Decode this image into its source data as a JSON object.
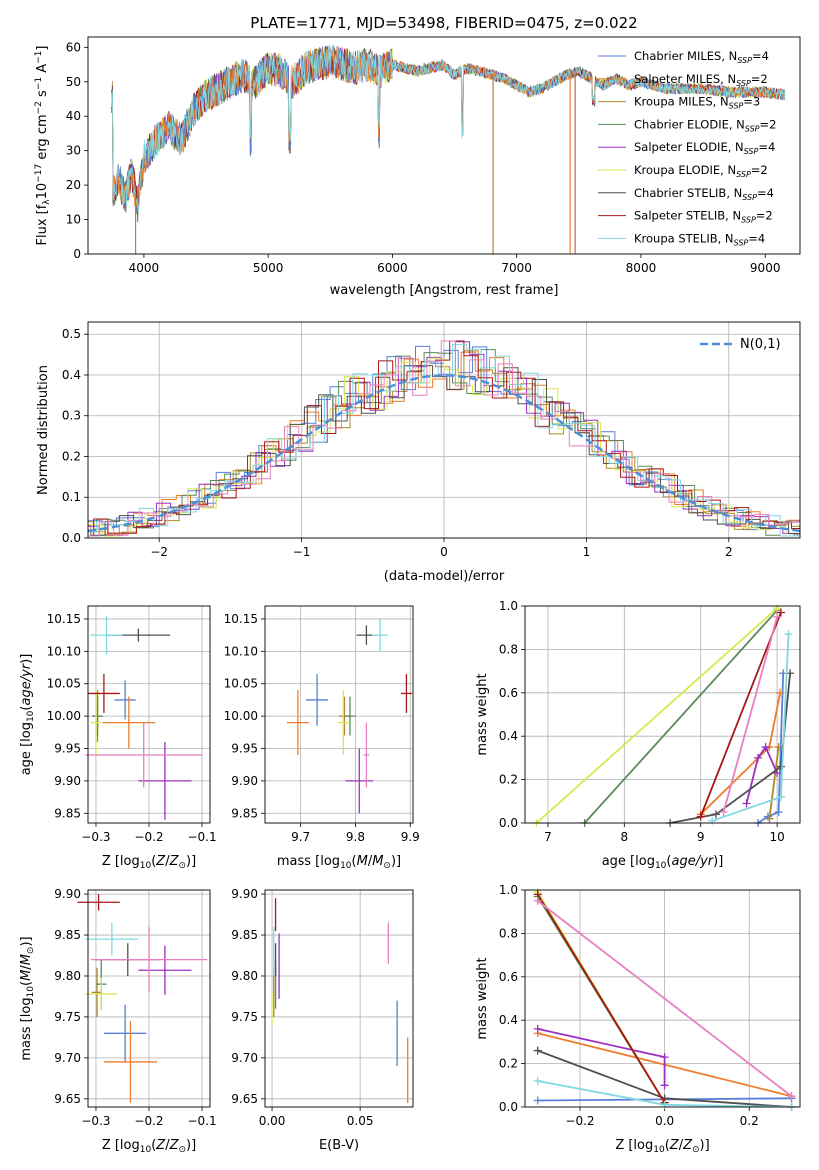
{
  "colors": {
    "ChabMILES": "#5a7fd8",
    "SalpMILES": "#ee7d2b",
    "KrouMILES": "#b0882a",
    "ChabELODIE": "#5a8a5a",
    "SalpELODIE": "#9b30c2",
    "KrouELODIE": "#d6e84f",
    "ChabSTELIB": "#505050",
    "SalpSTELIB": "#a81616",
    "KrouSTELIB": "#7fd8e0",
    "pink": "#e77fc0",
    "gauss": "#4a8fd8"
  },
  "chart_data": [
    {
      "id": "spectrum",
      "type": "line",
      "title": "PLATE=1771, MJD=53498, FIBERID=0475, z=0.022",
      "xlabel": "wavelength [Angstrom, rest frame]",
      "ylabel": "Flux [f",
      "xlim": [
        3550,
        9280
      ],
      "ylim": [
        0,
        63
      ],
      "xticks": [
        4000,
        5000,
        6000,
        7000,
        8000,
        9000
      ],
      "yticks": [
        0,
        10,
        20,
        30,
        40,
        50,
        60
      ],
      "grid": false,
      "legend_position": "top-right",
      "legend": [
        {
          "name": "Chabrier MILES, N",
          "nssp": "4",
          "color_key": "ChabMILES"
        },
        {
          "name": "Salpeter MILES, N",
          "nssp": "2",
          "color_key": "SalpMILES"
        },
        {
          "name": "Kroupa MILES, N",
          "nssp": "3",
          "color_key": "KrouMILES"
        },
        {
          "name": "Chabrier ELODIE, N",
          "nssp": "2",
          "color_key": "ChabELODIE"
        },
        {
          "name": "Salpeter ELODIE, N",
          "nssp": "4",
          "color_key": "SalpELODIE"
        },
        {
          "name": "Kroupa ELODIE, N",
          "nssp": "2",
          "color_key": "KrouELODIE"
        },
        {
          "name": "Chabrier STELIB, N",
          "nssp": "4",
          "color_key": "ChabSTELIB"
        },
        {
          "name": "Salpeter STELIB, N",
          "nssp": "2",
          "color_key": "SalpSTELIB"
        },
        {
          "name": "Kroupa STELIB, N",
          "nssp": "4",
          "color_key": "KrouSTELIB"
        }
      ],
      "continuum": [
        [
          3750,
          18
        ],
        [
          3800,
          22
        ],
        [
          3850,
          16
        ],
        [
          3900,
          24
        ],
        [
          3950,
          14
        ],
        [
          4000,
          28
        ],
        [
          4100,
          33
        ],
        [
          4200,
          37
        ],
        [
          4300,
          33
        ],
        [
          4400,
          42
        ],
        [
          4500,
          46
        ],
        [
          4600,
          48
        ],
        [
          4700,
          50
        ],
        [
          4800,
          52
        ],
        [
          4900,
          50
        ],
        [
          5000,
          54
        ],
        [
          5100,
          53
        ],
        [
          5200,
          50
        ],
        [
          5300,
          54
        ],
        [
          5400,
          55
        ],
        [
          5500,
          56
        ],
        [
          5600,
          55
        ],
        [
          5700,
          54
        ],
        [
          5800,
          55
        ],
        [
          5900,
          53
        ],
        [
          6000,
          55
        ],
        [
          6100,
          54
        ],
        [
          6200,
          53
        ],
        [
          6300,
          54
        ],
        [
          6400,
          55
        ],
        [
          6500,
          52
        ],
        [
          6600,
          54
        ],
        [
          6700,
          53
        ],
        [
          6800,
          52
        ],
        [
          6900,
          51
        ],
        [
          7000,
          49
        ],
        [
          7100,
          47
        ],
        [
          7200,
          48
        ],
        [
          7300,
          50
        ],
        [
          7400,
          52
        ],
        [
          7500,
          53
        ],
        [
          7600,
          51
        ],
        [
          7700,
          49
        ],
        [
          7800,
          51
        ],
        [
          7900,
          49
        ],
        [
          8000,
          50
        ],
        [
          8200,
          48
        ],
        [
          8500,
          48
        ],
        [
          8700,
          47
        ],
        [
          9000,
          47
        ],
        [
          9200,
          46
        ]
      ],
      "dips": [
        [
          3933,
          0
        ],
        [
          6810,
          0
        ],
        [
          7430,
          0
        ]
      ]
    },
    {
      "id": "residuals",
      "type": "step",
      "xlabel": "(data-model)/error",
      "ylabel": "Normed distribution",
      "xlim": [
        -2.5,
        2.5
      ],
      "ylim": [
        0,
        0.53
      ],
      "xticks": [
        -2,
        -1,
        0,
        1,
        2
      ],
      "yticks": [
        0,
        0.1,
        0.2,
        0.3,
        0.4,
        0.5
      ],
      "grid": true,
      "legend_position": "top-right",
      "gauss_label": "N(0,1)"
    },
    {
      "id": "age_Z",
      "type": "errorbar",
      "xlabel": "Z [log",
      "ylabel": "age  [log",
      "xlim": [
        -0.315,
        -0.085
      ],
      "ylim": [
        9.835,
        10.17
      ],
      "xticks": [
        -0.3,
        -0.2,
        -0.1
      ],
      "yticks": [
        9.85,
        9.9,
        9.95,
        10.0,
        10.05,
        10.1,
        10.15
      ],
      "grid": true,
      "points": [
        {
          "c": "ChabMILES",
          "x": -0.245,
          "xe": 0.02,
          "y": 10.025,
          "ye": 0.03
        },
        {
          "c": "SalpMILES",
          "x": -0.238,
          "xe": 0.05,
          "y": 9.99,
          "ye": 0.04
        },
        {
          "c": "KrouMILES",
          "x": -0.297,
          "xe": 0.01,
          "y": 10.0,
          "ye": 0.04
        },
        {
          "c": "ChabELODIE",
          "x": -0.297,
          "xe": 0.01,
          "y": 10.0,
          "ye": 0.03
        },
        {
          "c": "SalpELODIE",
          "x": -0.17,
          "xe": 0.05,
          "y": 9.9,
          "ye": 0.06
        },
        {
          "c": "KrouELODIE",
          "x": -0.3,
          "xe": 0.01,
          "y": 9.99,
          "ye": 0.05
        },
        {
          "c": "ChabSTELIB",
          "x": -0.22,
          "xe": 0.06,
          "y": 10.125,
          "ye": 0.01
        },
        {
          "c": "SalpSTELIB",
          "x": -0.285,
          "xe": 0.03,
          "y": 10.035,
          "ye": 0.03
        },
        {
          "c": "KrouSTELIB",
          "x": -0.28,
          "xe": 0.03,
          "y": 10.125,
          "ye": 0.03
        },
        {
          "c": "pink",
          "x": -0.21,
          "xe": 0.11,
          "y": 9.94,
          "ye": 0.05
        }
      ]
    },
    {
      "id": "age_mass",
      "type": "errorbar",
      "xlabel": "mass [log",
      "ylabel": "",
      "xlim": [
        9.635,
        9.905
      ],
      "ylim": [
        9.835,
        10.17
      ],
      "xticks": [
        9.7,
        9.8,
        9.9
      ],
      "yticks": [
        9.85,
        9.9,
        9.95,
        10.0,
        10.05,
        10.1,
        10.15
      ],
      "grid": true,
      "points": [
        {
          "c": "ChabMILES",
          "x": 9.73,
          "xe": 0.02,
          "y": 10.025,
          "ye": 0.04
        },
        {
          "c": "SalpMILES",
          "x": 9.695,
          "xe": 0.02,
          "y": 9.99,
          "ye": 0.05
        },
        {
          "c": "KrouMILES",
          "x": 9.78,
          "xe": 0.01,
          "y": 10.0,
          "ye": 0.03
        },
        {
          "c": "ChabELODIE",
          "x": 9.79,
          "xe": 0.01,
          "y": 10.0,
          "ye": 0.03
        },
        {
          "c": "SalpELODIE",
          "x": 9.807,
          "xe": 0.025,
          "y": 9.9,
          "ye": 0.05
        },
        {
          "c": "KrouELODIE",
          "x": 9.778,
          "xe": 0.01,
          "y": 9.99,
          "ye": 0.05
        },
        {
          "c": "ChabSTELIB",
          "x": 9.82,
          "xe": 0.018,
          "y": 10.125,
          "ye": 0.015
        },
        {
          "c": "SalpSTELIB",
          "x": 9.893,
          "xe": 0.01,
          "y": 10.035,
          "ye": 0.03
        },
        {
          "c": "KrouSTELIB",
          "x": 9.845,
          "xe": 0.015,
          "y": 10.125,
          "ye": 0.025
        },
        {
          "c": "pink",
          "x": 9.82,
          "xe": 0.005,
          "y": 9.94,
          "ye": 0.05
        }
      ]
    },
    {
      "id": "mass_Z",
      "type": "errorbar",
      "xlabel": "Z [log",
      "ylabel": "mass [log",
      "xlim": [
        -0.315,
        -0.085
      ],
      "ylim": [
        9.64,
        9.905
      ],
      "xticks": [
        -0.3,
        -0.2,
        -0.1
      ],
      "yticks": [
        9.65,
        9.7,
        9.75,
        9.8,
        9.85,
        9.9
      ],
      "grid": true,
      "points": [
        {
          "c": "ChabMILES",
          "x": -0.245,
          "xe": 0.04,
          "y": 9.73,
          "ye": 0.035
        },
        {
          "c": "SalpMILES",
          "x": -0.235,
          "xe": 0.05,
          "y": 9.695,
          "ye": 0.05
        },
        {
          "c": "KrouMILES",
          "x": -0.298,
          "xe": 0.01,
          "y": 9.78,
          "ye": 0.03
        },
        {
          "c": "ChabELODIE",
          "x": -0.29,
          "xe": 0.01,
          "y": 9.79,
          "ye": 0.03
        },
        {
          "c": "SalpELODIE",
          "x": -0.17,
          "xe": 0.05,
          "y": 9.807,
          "ye": 0.03
        },
        {
          "c": "KrouELODIE",
          "x": -0.29,
          "xe": 0.03,
          "y": 9.778,
          "ye": 0.02
        },
        {
          "c": "ChabSTELIB",
          "x": -0.24,
          "xe": 0.06,
          "y": 9.82,
          "ye": 0.02
        },
        {
          "c": "SalpSTELIB",
          "x": -0.295,
          "xe": 0.04,
          "y": 9.89,
          "ye": 0.01
        },
        {
          "c": "KrouSTELIB",
          "x": -0.27,
          "xe": 0.05,
          "y": 9.845,
          "ye": 0.02
        },
        {
          "c": "pink",
          "x": -0.2,
          "xe": 0.11,
          "y": 9.82,
          "ye": 0.04
        }
      ]
    },
    {
      "id": "mass_ebv",
      "type": "errorbar",
      "xlabel": "E(B-V)",
      "ylabel": "",
      "xlim": [
        -0.004,
        0.08
      ],
      "ylim": [
        9.64,
        9.905
      ],
      "xticks": [
        0.0,
        0.05
      ],
      "yticks": [
        9.65,
        9.7,
        9.75,
        9.8,
        9.85,
        9.9
      ],
      "grid": true,
      "points": [
        {
          "c": "ChabMILES",
          "x": 0.071,
          "xe": 0,
          "y": 9.73,
          "ye": 0.04
        },
        {
          "c": "SalpMILES",
          "x": 0.077,
          "xe": 0,
          "y": 9.685,
          "ye": 0.04
        },
        {
          "c": "KrouMILES",
          "x": 0.001,
          "xe": 0,
          "y": 9.78,
          "ye": 0.03
        },
        {
          "c": "ChabELODIE",
          "x": 0.002,
          "xe": 0,
          "y": 9.79,
          "ye": 0.03
        },
        {
          "c": "SalpELODIE",
          "x": 0.004,
          "xe": 0,
          "y": 9.812,
          "ye": 0.04
        },
        {
          "c": "KrouELODIE",
          "x": 0.0,
          "xe": 0,
          "y": 9.76,
          "ye": 0.02
        },
        {
          "c": "ChabSTELIB",
          "x": 0.002,
          "xe": 0,
          "y": 9.82,
          "ye": 0.02
        },
        {
          "c": "SalpSTELIB",
          "x": 0.002,
          "xe": 0,
          "y": 9.875,
          "ye": 0.02
        },
        {
          "c": "KrouSTELIB",
          "x": 0.001,
          "xe": 0,
          "y": 9.83,
          "ye": 0.03
        },
        {
          "c": "pink",
          "x": 0.066,
          "xe": 0,
          "y": 9.84,
          "ye": 0.025
        }
      ]
    },
    {
      "id": "weight_age",
      "type": "line",
      "xlabel": "age  [log",
      "ylabel": "mass weight",
      "xlim": [
        6.7,
        10.3
      ],
      "ylim": [
        0,
        1.0
      ],
      "xticks": [
        7,
        8,
        9,
        10
      ],
      "yticks": [
        0.0,
        0.2,
        0.4,
        0.6,
        0.8,
        1.0
      ],
      "grid": true,
      "series": [
        {
          "c": "ChabMILES",
          "x": [
            9.75,
            9.88,
            10.02,
            10.08
          ],
          "y": [
            0.0,
            0.03,
            0.05,
            0.69
          ]
        },
        {
          "c": "SalpMILES",
          "x": [
            9.0,
            9.9,
            10.04
          ],
          "y": [
            0.04,
            0.35,
            0.6
          ]
        },
        {
          "c": "KrouMILES",
          "x": [
            9.9,
            10.02
          ],
          "y": [
            0.02,
            0.35
          ]
        },
        {
          "c": "ChabELODIE",
          "x": [
            7.48,
            10.0
          ],
          "y": [
            0.0,
            0.98
          ]
        },
        {
          "c": "SalpELODIE",
          "x": [
            9.6,
            9.75,
            9.85,
            10.0
          ],
          "y": [
            0.09,
            0.3,
            0.35,
            0.23
          ]
        },
        {
          "c": "KrouELODIE",
          "x": [
            6.85,
            10.0
          ],
          "y": [
            0.0,
            0.99
          ]
        },
        {
          "c": "ChabSTELIB",
          "x": [
            8.6,
            9.2,
            10.05,
            10.17
          ],
          "y": [
            0.0,
            0.04,
            0.26,
            0.69
          ]
        },
        {
          "c": "SalpSTELIB",
          "x": [
            9.0,
            10.05
          ],
          "y": [
            0.03,
            0.97
          ]
        },
        {
          "c": "KrouSTELIB",
          "x": [
            9.15,
            10.05,
            10.15
          ],
          "y": [
            0.01,
            0.12,
            0.87
          ]
        },
        {
          "c": "pink",
          "x": [
            9.3,
            10.0
          ],
          "y": [
            0.05,
            0.95
          ]
        }
      ]
    },
    {
      "id": "weight_Z",
      "type": "line",
      "xlabel": "Z [log",
      "ylabel": "mass weight",
      "xlim": [
        -0.33,
        0.32
      ],
      "ylim": [
        0,
        1.0
      ],
      "xticks": [
        -0.2,
        0.0,
        0.2
      ],
      "yticks": [
        0.0,
        0.2,
        0.4,
        0.6,
        0.8,
        1.0
      ],
      "grid": true,
      "series": [
        {
          "c": "ChabMILES",
          "x": [
            -0.3,
            0.3
          ],
          "y": [
            0.03,
            0.04
          ]
        },
        {
          "c": "SalpMILES",
          "x": [
            -0.3,
            0.3
          ],
          "y": [
            0.34,
            0.05
          ]
        },
        {
          "c": "KrouMILES",
          "x": [
            -0.3,
            0.0
          ],
          "y": [
            0.98,
            0.02
          ]
        },
        {
          "c": "ChabELODIE",
          "x": [
            -0.3,
            0.0
          ],
          "y": [
            0.97,
            0.02
          ]
        },
        {
          "c": "SalpELODIE",
          "x": [
            -0.3,
            0.0,
            0.0
          ],
          "y": [
            0.36,
            0.23,
            0.1
          ]
        },
        {
          "c": "KrouELODIE",
          "x": [
            -0.3,
            0.0
          ],
          "y": [
            0.99,
            0.02
          ]
        },
        {
          "c": "ChabSTELIB",
          "x": [
            -0.3,
            0.0,
            0.3
          ],
          "y": [
            0.26,
            0.04,
            0.0
          ]
        },
        {
          "c": "SalpSTELIB",
          "x": [
            -0.3,
            0.0
          ],
          "y": [
            0.98,
            0.02
          ]
        },
        {
          "c": "KrouSTELIB",
          "x": [
            -0.3,
            0.0,
            0.3
          ],
          "y": [
            0.12,
            0.01,
            0.0
          ]
        },
        {
          "c": "pink",
          "x": [
            -0.3,
            0.3
          ],
          "y": [
            0.95,
            0.05
          ]
        }
      ]
    }
  ]
}
